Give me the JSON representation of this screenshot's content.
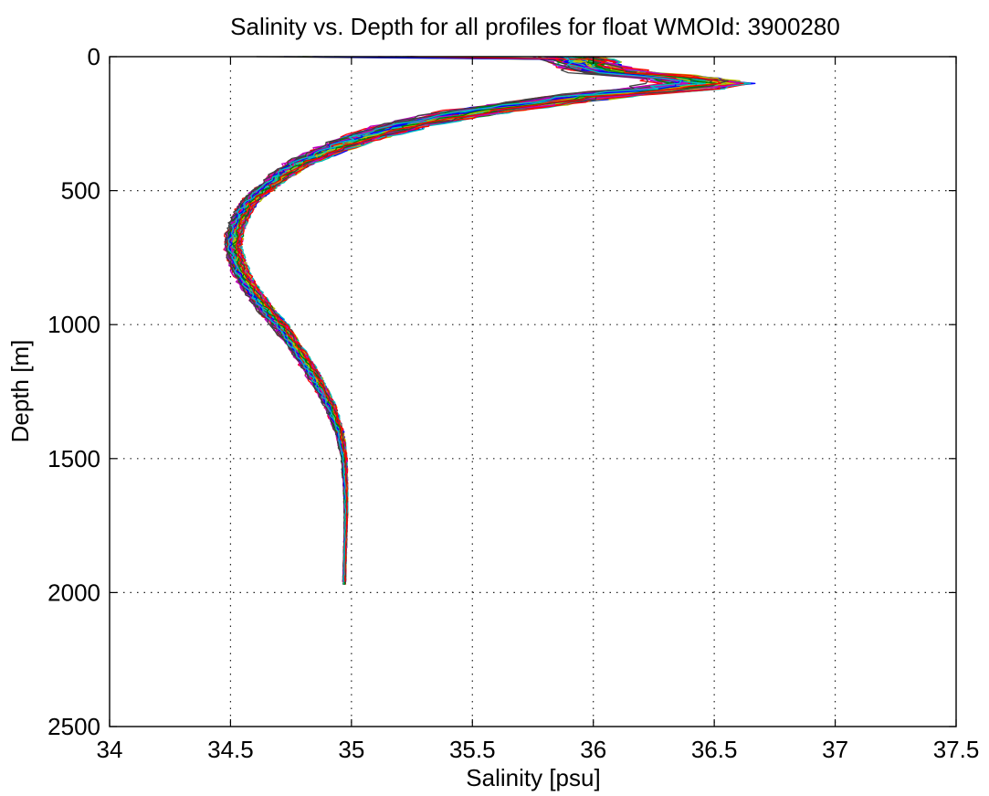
{
  "chart_data": {
    "type": "line",
    "title": "Salinity vs. Depth for all profiles for float WMOId: 3900280",
    "xlabel": "Salinity [psu]",
    "ylabel": "Depth [m]",
    "xlim": [
      34,
      37.5
    ],
    "ylim": [
      0,
      2500
    ],
    "y_reversed": true,
    "grid": true,
    "xticks": [
      "34",
      "34.5",
      "35",
      "35.5",
      "36",
      "36.5",
      "37",
      "37.5"
    ],
    "yticks": [
      "0",
      "500",
      "1000",
      "1500",
      "2000",
      "2500"
    ],
    "series_colors": [
      "#0000ff",
      "#008000",
      "#ff0000",
      "#00bfbf",
      "#bf00bf",
      "#bfbf00",
      "#404040"
    ],
    "profile_count": 60,
    "envelope": {
      "depth": [
        0,
        20,
        40,
        60,
        80,
        100,
        120,
        150,
        200,
        250,
        300,
        350,
        400,
        450,
        500,
        550,
        600,
        650,
        700,
        750,
        800,
        850,
        900,
        950,
        1000,
        1100,
        1200,
        1300,
        1400,
        1500,
        1600,
        1700,
        1800,
        1900,
        1975
      ],
      "salinity_mean": [
        35.9,
        35.95,
        36.0,
        36.1,
        36.35,
        36.45,
        36.3,
        35.95,
        35.55,
        35.25,
        35.05,
        34.9,
        34.78,
        34.7,
        34.63,
        34.57,
        34.54,
        34.52,
        34.51,
        34.52,
        34.54,
        34.57,
        34.61,
        34.65,
        34.7,
        34.78,
        34.85,
        34.91,
        34.95,
        34.97,
        34.975,
        34.977,
        34.975,
        34.972,
        34.97
      ],
      "salinity_spread": [
        0.25,
        0.25,
        0.25,
        0.3,
        0.3,
        0.35,
        0.35,
        0.3,
        0.25,
        0.2,
        0.16,
        0.13,
        0.1,
        0.08,
        0.07,
        0.06,
        0.06,
        0.06,
        0.06,
        0.06,
        0.06,
        0.06,
        0.06,
        0.06,
        0.06,
        0.05,
        0.05,
        0.04,
        0.03,
        0.02,
        0.015,
        0.012,
        0.01,
        0.01,
        0.01
      ]
    }
  }
}
